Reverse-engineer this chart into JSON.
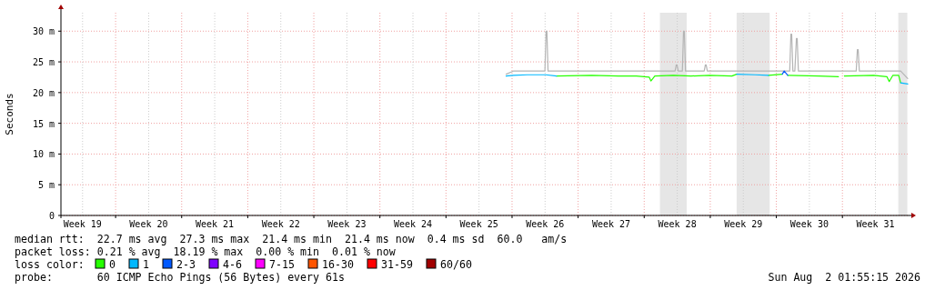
{
  "chart_data": {
    "type": "line",
    "ylabel": "Seconds",
    "legend_title": "loss color:",
    "legend": "bottom",
    "grid": true,
    "xlim": [
      "2026-05-05T05:00",
      "2026-08-02T22:00"
    ],
    "xticks": [
      {
        "value": "2026-05-07T12:00",
        "label": "Week 19"
      },
      {
        "value": "2026-05-14T12:00",
        "label": "Week 20"
      },
      {
        "value": "2026-05-21T12:00",
        "label": "Week 21"
      },
      {
        "value": "2026-05-28T12:00",
        "label": "Week 22"
      },
      {
        "value": "2026-06-04T12:00",
        "label": "Week 23"
      },
      {
        "value": "2026-06-11T12:00",
        "label": "Week 24"
      },
      {
        "value": "2026-06-18T12:00",
        "label": "Week 25"
      },
      {
        "value": "2026-06-25T12:00",
        "label": "Week 26"
      },
      {
        "value": "2026-07-02T12:00",
        "label": "Week 27"
      },
      {
        "value": "2026-07-09T12:00",
        "label": "Week 28"
      },
      {
        "value": "2026-07-16T12:00",
        "label": "Week 29"
      },
      {
        "value": "2026-07-23T12:00",
        "label": "Week 30"
      },
      {
        "value": "2026-07-30T12:00",
        "label": "Week 31"
      },
      {
        "value": "2026-05-11",
        "label": null
      },
      {
        "value": "2026-05-18",
        "label": null
      },
      {
        "value": "2026-05-25",
        "label": null
      },
      {
        "value": "2026-06-01",
        "label": null
      },
      {
        "value": "2026-06-08",
        "label": null
      },
      {
        "value": "2026-06-15",
        "label": null
      },
      {
        "value": "2026-06-22",
        "label": null
      },
      {
        "value": "2026-06-29",
        "label": null
      },
      {
        "value": "2026-07-06",
        "label": null
      },
      {
        "value": "2026-07-13",
        "label": null
      },
      {
        "value": "2026-07-20",
        "label": null
      },
      {
        "value": "2026-07-27",
        "label": null
      }
    ],
    "ylim": [
      0,
      33
    ],
    "yticks": [
      0,
      {
        "value": 5,
        "label": "5 m"
      },
      {
        "value": 10,
        "label": "10 m"
      },
      {
        "value": 15,
        "label": "15 m"
      },
      {
        "value": 20,
        "label": "20 m"
      },
      {
        "value": 25,
        "label": "25 m"
      },
      {
        "value": 30,
        "label": "30 m"
      }
    ],
    "bands": [
      {
        "axis": "x",
        "from": "2026-07-07T16:00",
        "to": "2026-07-10T12:00",
        "color": "#e6e6e6"
      },
      {
        "axis": "x",
        "from": "2026-07-15T19:00",
        "to": "2026-07-19T07:00",
        "color": "#e6e6e6"
      },
      {
        "axis": "x",
        "from": "2026-08-01T22:00",
        "to": "2026-08-02T21:00",
        "color": "#e6e6e6"
      }
    ],
    "x": [
      "2026-06-21T09:00",
      "2026-06-22T03:00",
      "2026-06-23T15:00",
      "2026-06-25T14:00",
      "2026-06-26T17:00",
      "2026-06-30T10:00",
      "2026-07-03T06:00",
      "2026-07-05T04:00",
      "2026-07-06T13:00",
      "2026-07-06T17:00",
      "2026-07-07T03:00",
      "2026-07-09T02:00",
      "2026-07-10T23:00",
      "2026-07-12T22:00",
      "2026-07-15T07:00",
      "2026-07-15T19:00",
      "2026-07-17T18:00",
      "2026-07-19T04:00",
      "2026-07-20T15:00",
      "2026-07-20T20:00",
      "2026-07-21T05:00",
      "2026-07-24T12:00",
      "2026-07-26T14:00",
      "2026-07-27T00:00",
      "2026-07-27T05:00",
      "2026-07-30T07:00",
      "2026-07-31T17:00",
      "2026-07-31T23:00",
      "2026-08-01T08:00",
      "2026-08-01T23:00",
      "2026-08-02T04:00",
      "2026-08-02T22:00"
    ],
    "series": [
      {
        "color": "#b4b4b4",
        "x": [
          "2026-06-21T09:00",
          "2026-06-22T03:00",
          "2026-06-25T11:30",
          "2026-06-25T14:30",
          "2026-06-25T16:30",
          "2026-06-25T19:30",
          "2026-07-09T06:30",
          "2026-07-09T09:30",
          "2026-07-09T11:30",
          "2026-07-09T14:30",
          "2026-07-10T01:00",
          "2026-07-10T04:00",
          "2026-07-10T06:00",
          "2026-07-10T09:00",
          "2026-07-12T08:30",
          "2026-07-12T11:30",
          "2026-07-12T13:30",
          "2026-07-12T16:30",
          "2026-07-21T10:00",
          "2026-07-21T13:00",
          "2026-07-21T15:00",
          "2026-07-21T18:00",
          "2026-07-21T23:00",
          "2026-07-22T03:00",
          "2026-07-22T05:00",
          "2026-07-22T08:00",
          "2026-07-28T11:00",
          "2026-07-28T14:00",
          "2026-07-28T16:00",
          "2026-07-28T19:00",
          "2026-08-02T04:00",
          "2026-08-02T22:00"
        ],
        "values": [
          23,
          23.5,
          23.5,
          30,
          30,
          23.5,
          23.5,
          24.5,
          24.5,
          23.5,
          23.5,
          30,
          30,
          23.5,
          23.5,
          24.5,
          24.5,
          23.5,
          23.5,
          29.5,
          29.5,
          23.5,
          23.5,
          28.8,
          28.8,
          23.5,
          23.5,
          27,
          27,
          23.5,
          23.5,
          22.3
        ]
      },
      {
        "name": "0",
        "color": "#26ff00",
        "values": [
          null,
          null,
          null,
          null,
          22.7,
          22.8,
          22.7,
          22.7,
          22.5,
          21.9,
          22.7,
          22.8,
          22.7,
          22.8,
          22.7,
          23,
          null,
          22.8,
          23,
          null,
          22.8,
          22.7,
          22.6,
          null,
          22.7,
          22.8,
          22.6,
          21.8,
          22.8,
          22.8,
          21.6,
          null
        ]
      },
      {
        "name": "1",
        "color": "#00b8ff",
        "values": [
          22.7,
          22.8,
          22.9,
          22.9,
          22.7,
          null,
          null,
          null,
          null,
          null,
          null,
          null,
          null,
          null,
          null,
          23,
          22.9,
          22.8,
          null,
          null,
          null,
          null,
          null,
          null,
          null,
          null,
          null,
          null,
          null,
          null,
          21.6,
          21.4
        ]
      },
      {
        "name": "2-3",
        "color": "#0059ff",
        "values": [
          null,
          null,
          null,
          null,
          null,
          null,
          null,
          null,
          null,
          null,
          null,
          null,
          null,
          null,
          null,
          null,
          null,
          null,
          23,
          23.5,
          22.8,
          null,
          null,
          null,
          null,
          null,
          null,
          null,
          null,
          null,
          null,
          null
        ]
      },
      {
        "name": "4-6",
        "color": "#7e00ff",
        "values": [
          null,
          null,
          null,
          null,
          null,
          null,
          null,
          null,
          null,
          null,
          null,
          null,
          null,
          null,
          null,
          null,
          null,
          null,
          null,
          null,
          null,
          null,
          null,
          null,
          null,
          null,
          null,
          null,
          null,
          null,
          null,
          null
        ]
      },
      {
        "name": "7-15",
        "color": "#ff00ff",
        "values": [
          null,
          null,
          null,
          null,
          null,
          null,
          null,
          null,
          null,
          null,
          null,
          null,
          null,
          null,
          null,
          null,
          null,
          null,
          null,
          null,
          null,
          null,
          null,
          null,
          null,
          null,
          null,
          null,
          null,
          null,
          null,
          null
        ]
      },
      {
        "name": "16-30",
        "color": "#ff5500",
        "values": [
          null,
          null,
          null,
          null,
          null,
          null,
          null,
          null,
          null,
          null,
          null,
          null,
          null,
          null,
          null,
          null,
          null,
          null,
          null,
          null,
          null,
          null,
          null,
          null,
          null,
          null,
          null,
          null,
          null,
          null,
          null,
          null
        ]
      },
      {
        "name": "31-59",
        "color": "#ff0000",
        "values": [
          null,
          null,
          null,
          null,
          null,
          null,
          null,
          null,
          null,
          null,
          null,
          null,
          null,
          null,
          null,
          null,
          null,
          null,
          null,
          null,
          null,
          null,
          null,
          null,
          null,
          null,
          null,
          null,
          null,
          null,
          null,
          null
        ]
      },
      {
        "name": "60/60",
        "color": "#a10000",
        "values": [
          null,
          null,
          null,
          null,
          null,
          null,
          null,
          null,
          null,
          null,
          null,
          null,
          null,
          null,
          null,
          null,
          null,
          null,
          null,
          null,
          null,
          null,
          null,
          null,
          null,
          null,
          null,
          null,
          null,
          null,
          null,
          null
        ]
      }
    ],
    "annotations": [
      "median rtt:  22.7 ms avg  27.3 ms max  21.4 ms min  21.4 ms now  0.4 ms sd  60.0   am/s",
      "packet loss: 0.21 % avg  18.19 % max  0.00 % min  0.01 % now",
      "probe:       60 ICMP Echo Pings (56 Bytes) every 61s",
      "Sun Aug  2 01:55:15 2026"
    ]
  }
}
